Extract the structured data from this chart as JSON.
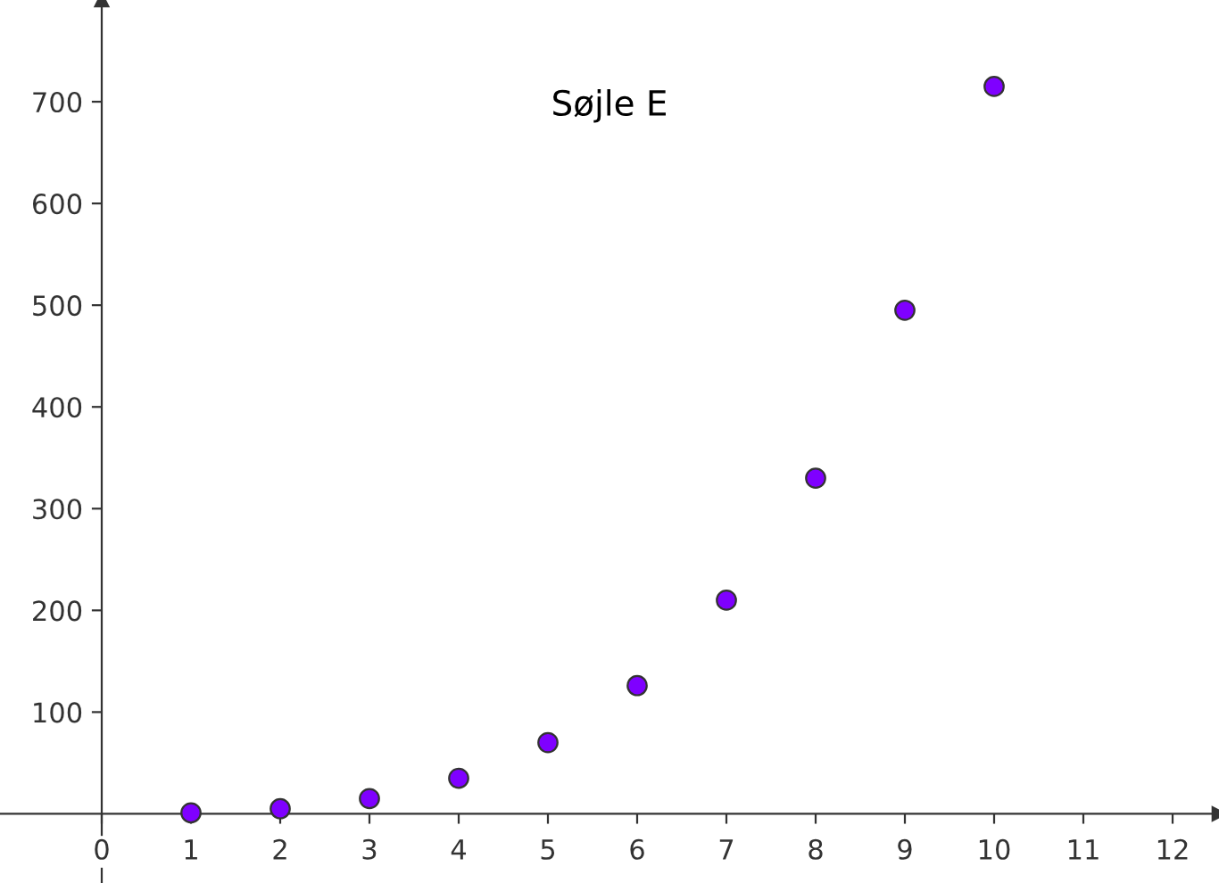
{
  "chart_data": {
    "type": "scatter",
    "title": "Søjle E",
    "x": [
      1,
      2,
      3,
      4,
      5,
      6,
      7,
      8,
      9,
      10
    ],
    "values": [
      1,
      5,
      15,
      35,
      70,
      126,
      210,
      330,
      495,
      715
    ],
    "color": "#7f00ff",
    "marker": "circle",
    "grid": false,
    "legend": false,
    "xlim": [
      -1.14,
      12.52
    ],
    "ylim": [
      -68,
      800
    ],
    "xticks": [
      {
        "value": 0,
        "label": "0"
      },
      1,
      2,
      3,
      4,
      5,
      6,
      7,
      8,
      9,
      10,
      11,
      12
    ],
    "yticks": [
      100,
      200,
      300,
      400,
      500,
      600,
      700
    ]
  }
}
